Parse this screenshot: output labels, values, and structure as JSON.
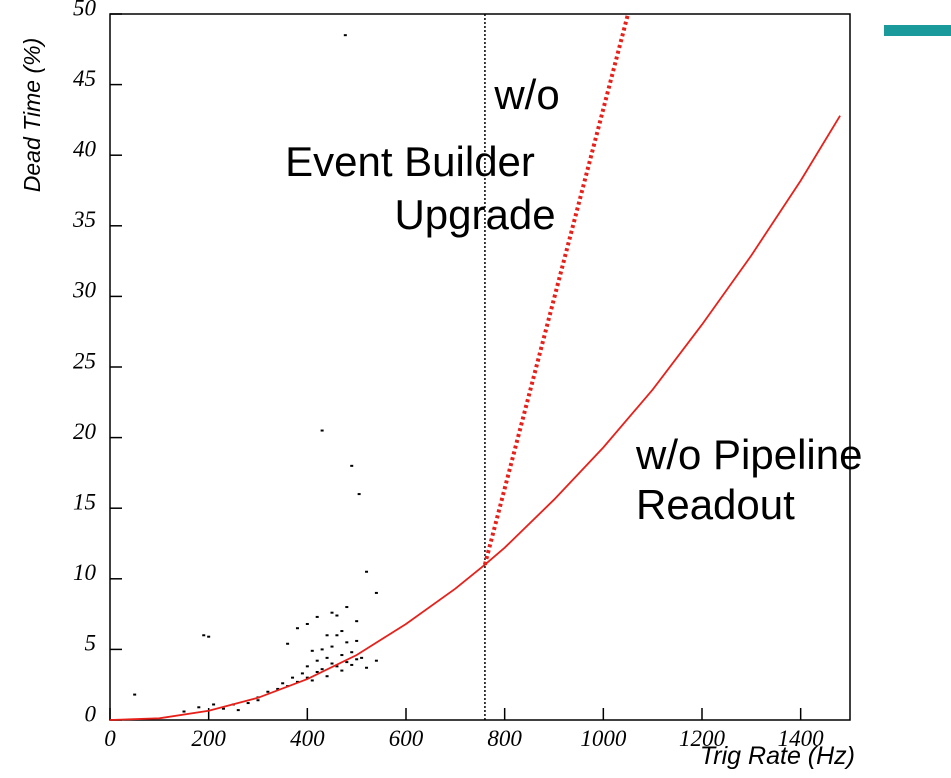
{
  "chart_data": {
    "type": "scatter",
    "y_label": "Dead Time (%)",
    "x_label": "Trig Rate (Hz)",
    "xlim": [
      0,
      1500
    ],
    "ylim": [
      0,
      50
    ],
    "xticks": [
      0,
      200,
      400,
      600,
      800,
      1000,
      1200,
      1400
    ],
    "yticks": [
      0,
      5,
      10,
      15,
      20,
      25,
      30,
      35,
      40,
      45,
      50
    ],
    "series": [
      {
        "type": "scatter",
        "color": "#000000",
        "x": [
          50,
          150,
          180,
          190,
          200,
          210,
          230,
          260,
          300,
          320,
          340,
          350,
          360,
          370,
          380,
          390,
          400,
          400,
          410,
          420,
          420,
          430,
          430,
          440,
          440,
          450,
          450,
          460,
          460,
          470,
          470,
          480,
          480,
          490,
          490,
          500,
          500,
          510,
          520,
          540,
          380,
          400,
          420,
          440,
          460,
          480,
          500,
          430,
          490,
          505,
          520,
          540,
          477,
          360,
          410,
          450,
          470,
          300,
          280,
          250
        ],
        "values": [
          1.8,
          0.6,
          0.9,
          6,
          5.9,
          1.1,
          0.8,
          0.7,
          1.6,
          2.0,
          2.2,
          2.6,
          2.4,
          3.0,
          2.7,
          3.3,
          3.0,
          3.8,
          2.8,
          4.2,
          3.4,
          5.0,
          3.6,
          4.4,
          3.1,
          5.2,
          4.0,
          3.8,
          6.0,
          4.6,
          3.5,
          5.5,
          4.1,
          4.8,
          3.9,
          4.3,
          5.6,
          4.4,
          3.7,
          4.2,
          6.5,
          6.8,
          7.3,
          6.0,
          7.4,
          8.0,
          7.0,
          20.5,
          18,
          16,
          10.5,
          9,
          48.5,
          5.4,
          4.9,
          7.6,
          6.3,
          1.4,
          1.2,
          1.1
        ]
      },
      {
        "type": "line",
        "color": "#e8201a",
        "dash": false,
        "x": [
          0,
          100,
          200,
          300,
          400,
          500,
          600,
          700,
          760,
          800,
          900,
          1000,
          1100,
          1200,
          1300,
          1400,
          1480
        ],
        "values": [
          0,
          0.12,
          0.65,
          1.57,
          2.9,
          4.6,
          6.8,
          9.3,
          11,
          12.2,
          15.6,
          19.3,
          23.4,
          28.0,
          32.9,
          38.2,
          42.8
        ]
      },
      {
        "type": "line",
        "color": "#e8201a",
        "dash": true,
        "x": [
          760,
          1050
        ],
        "values": [
          11,
          50
        ]
      }
    ],
    "reference_line": {
      "x": 760,
      "color": "#000000"
    },
    "annotations": [
      {
        "lines": [
          "w/o",
          "Event Builder",
          "Upgrade"
        ]
      },
      {
        "lines": [
          "w/o Pipeline",
          "Readout"
        ]
      }
    ]
  }
}
